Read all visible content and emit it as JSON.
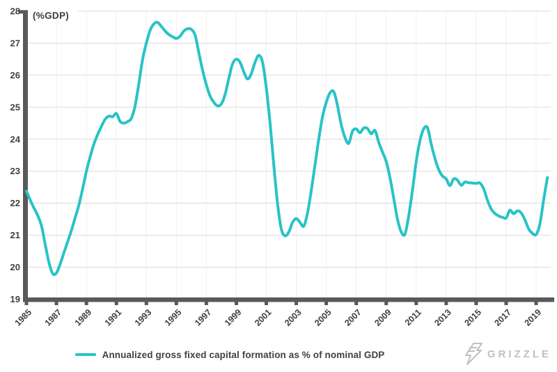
{
  "legend": {
    "label": "Annualized gross fixed capital formation as % of nominal GDP"
  },
  "logo": {
    "text": "GRIZZLE",
    "icon": "lightning-flash-icon"
  },
  "colors": {
    "line": "#28c3c6",
    "axis": "#58595b",
    "grid": "#dadada",
    "grid_vertical": "#f0f0f0",
    "text": "#414042",
    "logo": "#bdbfc1",
    "background": "#ffffff"
  },
  "chart_data": {
    "type": "line",
    "title": "",
    "ylabel": "(%GDP)",
    "xlabel": "",
    "ylim": [
      19,
      28
    ],
    "yticks": [
      19,
      20,
      21,
      22,
      23,
      24,
      25,
      26,
      27,
      28
    ],
    "xticks": [
      1985,
      1987,
      1989,
      1991,
      1993,
      1995,
      1997,
      1999,
      2001,
      2003,
      2005,
      2007,
      2009,
      2011,
      2013,
      2015,
      2017,
      2019
    ],
    "grid": "horizontal solid + very faint vertical at 2-year ticks",
    "legend_position": "bottom-center",
    "series": [
      {
        "name": "Annualized gross fixed capital formation as % of nominal GDP",
        "frequency": "quarterly",
        "x_start": 1985.0,
        "x_step": 0.25,
        "values": [
          22.38,
          22.1,
          21.85,
          21.62,
          21.3,
          20.72,
          20.15,
          19.8,
          19.82,
          20.1,
          20.45,
          20.8,
          21.15,
          21.55,
          21.95,
          22.45,
          23.0,
          23.45,
          23.85,
          24.15,
          24.4,
          24.62,
          24.72,
          24.7,
          24.8,
          24.55,
          24.5,
          24.55,
          24.65,
          25.05,
          25.75,
          26.5,
          27.0,
          27.4,
          27.6,
          27.65,
          27.52,
          27.38,
          27.27,
          27.2,
          27.15,
          27.22,
          27.38,
          27.45,
          27.43,
          27.25,
          26.7,
          26.15,
          25.7,
          25.35,
          25.15,
          25.04,
          25.1,
          25.4,
          25.9,
          26.35,
          26.5,
          26.4,
          26.1,
          25.88,
          26.05,
          26.4,
          26.62,
          26.4,
          25.6,
          24.5,
          23.2,
          22.0,
          21.2,
          20.98,
          21.1,
          21.4,
          21.52,
          21.4,
          21.28,
          21.7,
          22.4,
          23.2,
          24.0,
          24.7,
          25.15,
          25.45,
          25.48,
          25.05,
          24.45,
          24.05,
          23.87,
          24.25,
          24.32,
          24.2,
          24.35,
          24.33,
          24.17,
          24.27,
          23.9,
          23.6,
          23.3,
          22.8,
          22.15,
          21.5,
          21.1,
          21.03,
          21.6,
          22.4,
          23.3,
          23.95,
          24.32,
          24.36,
          23.85,
          23.4,
          23.05,
          22.85,
          22.76,
          22.55,
          22.76,
          22.72,
          22.56,
          22.66,
          22.64,
          22.63,
          22.62,
          22.63,
          22.45,
          22.1,
          21.82,
          21.68,
          21.6,
          21.56,
          21.54,
          21.78,
          21.67,
          21.76,
          21.7,
          21.48,
          21.2,
          21.06,
          21.02,
          21.35,
          22.1,
          22.8
        ]
      }
    ]
  }
}
